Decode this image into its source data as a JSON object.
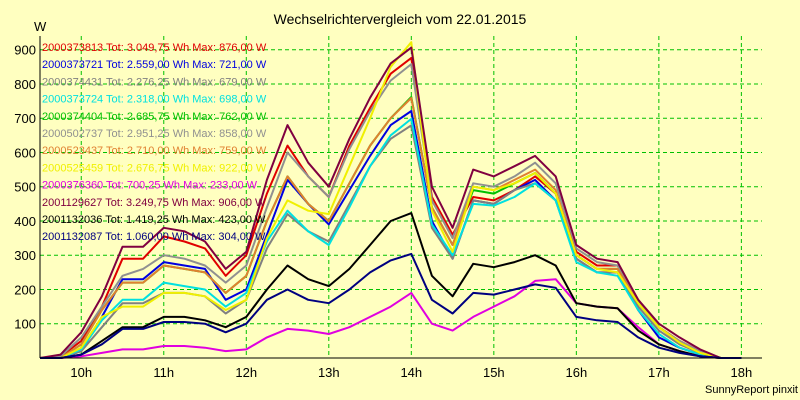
{
  "chart_data": {
    "type": "line",
    "title": "Wechselrichtervergleich vom 22.01.2015",
    "ylabel": "W",
    "footer": "SunnyReport pinxit",
    "ylim": [
      0,
      940
    ],
    "xlim": [
      9.5,
      18.25
    ],
    "y_ticks": [
      100,
      200,
      300,
      400,
      500,
      600,
      700,
      800,
      900
    ],
    "x_ticks": [
      10,
      11,
      12,
      13,
      14,
      15,
      16,
      17,
      18
    ],
    "x_tick_labels": [
      "10h",
      "11h",
      "12h",
      "13h",
      "14h",
      "15h",
      "16h",
      "17h",
      "18h"
    ],
    "grid": true,
    "x": [
      9.5,
      9.75,
      10,
      10.25,
      10.5,
      10.75,
      11,
      11.25,
      11.5,
      11.75,
      12,
      12.25,
      12.5,
      12.75,
      13,
      13.25,
      13.5,
      13.75,
      14,
      14.25,
      14.5,
      14.75,
      15,
      15.25,
      15.5,
      15.75,
      16,
      16.25,
      16.5,
      16.75,
      17,
      17.25,
      17.5,
      17.75,
      18
    ],
    "series": [
      {
        "name": "2000373813",
        "legend": "2000373813 Tot: 3.049,75 Wh Max: 876,00 W",
        "color": "#e00000",
        "values": [
          0,
          5,
          50,
          150,
          290,
          290,
          355,
          340,
          320,
          240,
          300,
          480,
          620,
          530,
          470,
          620,
          730,
          830,
          876,
          470,
          360,
          470,
          460,
          490,
          530,
          480,
          310,
          270,
          270,
          170,
          90,
          50,
          20,
          0,
          0
        ]
      },
      {
        "name": "2000373721",
        "legend": "2000373721 Tot: 2.559,00 Wh Max: 721,00 W",
        "color": "#0000e0",
        "values": [
          0,
          0,
          20,
          120,
          230,
          230,
          280,
          270,
          260,
          170,
          200,
          360,
          520,
          450,
          390,
          490,
          590,
          680,
          721,
          400,
          290,
          460,
          450,
          490,
          520,
          460,
          290,
          250,
          250,
          140,
          60,
          30,
          10,
          0,
          0
        ]
      },
      {
        "name": "2000374431",
        "legend": "2000374431 Tot: 2.276,25 Wh Max: 679,00 W",
        "color": "#808080",
        "values": [
          0,
          0,
          20,
          90,
          160,
          160,
          190,
          190,
          180,
          130,
          170,
          320,
          420,
          370,
          340,
          450,
          560,
          640,
          679,
          380,
          290,
          460,
          450,
          490,
          510,
          460,
          290,
          250,
          250,
          150,
          80,
          40,
          15,
          0,
          0
        ]
      },
      {
        "name": "2000373724",
        "legend": "2000373724 Tot: 2.318,00 Wh Max: 698,00 W",
        "color": "#00e0e0",
        "values": [
          0,
          0,
          25,
          110,
          170,
          170,
          220,
          210,
          200,
          150,
          190,
          340,
          430,
          370,
          330,
          440,
          560,
          650,
          698,
          390,
          300,
          450,
          445,
          470,
          510,
          460,
          280,
          250,
          240,
          140,
          70,
          30,
          10,
          0,
          0
        ]
      },
      {
        "name": "2000374404",
        "legend": "2000374404 Tot: 2.685,75 Wh Max: 762,00 W",
        "color": "#00c000",
        "values": [
          0,
          0,
          40,
          140,
          220,
          220,
          270,
          260,
          250,
          190,
          240,
          400,
          530,
          450,
          400,
          510,
          620,
          700,
          762,
          440,
          330,
          490,
          480,
          510,
          540,
          480,
          300,
          260,
          260,
          160,
          90,
          45,
          15,
          0,
          0
        ]
      },
      {
        "name": "2000502737",
        "legend": "2000502737 Tot: 2.951,25 Wh Max: 858,00 W",
        "color": "#909090",
        "values": [
          0,
          5,
          60,
          150,
          240,
          260,
          300,
          290,
          270,
          220,
          270,
          440,
          600,
          530,
          470,
          610,
          720,
          810,
          858,
          460,
          350,
          510,
          500,
          530,
          570,
          510,
          320,
          280,
          270,
          170,
          90,
          50,
          20,
          0,
          0
        ]
      },
      {
        "name": "2000523437",
        "legend": "2000523437 Tot: 2.710,00 Wh Max: 759,00 W",
        "color": "#e08030",
        "values": [
          0,
          0,
          40,
          140,
          220,
          220,
          270,
          260,
          250,
          190,
          240,
          400,
          530,
          450,
          400,
          510,
          620,
          700,
          759,
          440,
          330,
          500,
          490,
          520,
          550,
          490,
          300,
          260,
          260,
          160,
          90,
          45,
          15,
          0,
          0
        ]
      },
      {
        "name": "2000525459",
        "legend": "2000525459 Tot: 2.676,75 Wh Max: 922,00 W",
        "color": "#f0f000",
        "values": [
          0,
          0,
          30,
          120,
          150,
          150,
          190,
          190,
          180,
          140,
          170,
          350,
          460,
          430,
          420,
          560,
          700,
          850,
          922,
          430,
          310,
          500,
          490,
          510,
          540,
          480,
          300,
          260,
          250,
          160,
          90,
          45,
          15,
          0,
          0
        ]
      },
      {
        "name": "2000376360",
        "legend": "2000376360 Tot: 700,25 Wh Max: 233,00 W",
        "color": "#e000e0",
        "values": [
          0,
          0,
          5,
          15,
          25,
          25,
          35,
          35,
          30,
          20,
          25,
          60,
          85,
          80,
          70,
          90,
          120,
          150,
          190,
          100,
          80,
          120,
          150,
          180,
          225,
          230,
          160,
          150,
          145,
          90,
          40,
          20,
          5,
          0,
          0
        ]
      },
      {
        "name": "2001129627",
        "legend": "2001129627 Tot: 3.249,75 Wh Max: 906,00 W",
        "color": "#800040",
        "values": [
          0,
          10,
          75,
          180,
          325,
          325,
          380,
          370,
          340,
          260,
          310,
          520,
          680,
          570,
          500,
          640,
          760,
          860,
          906,
          500,
          380,
          550,
          530,
          560,
          590,
          530,
          330,
          290,
          280,
          170,
          100,
          60,
          25,
          0,
          0
        ]
      },
      {
        "name": "2001132036",
        "legend": "2001132036 Tot: 1.419,25 Wh Max: 423,00 W",
        "color": "#000000",
        "values": [
          0,
          0,
          10,
          50,
          90,
          90,
          120,
          120,
          110,
          90,
          120,
          200,
          270,
          230,
          210,
          260,
          330,
          400,
          423,
          240,
          180,
          275,
          265,
          280,
          300,
          270,
          160,
          150,
          145,
          80,
          40,
          20,
          5,
          0,
          0
        ]
      },
      {
        "name": "2001132087",
        "legend": "2001132087 Tot: 1.060,00 Wh Max: 304,00 W",
        "color": "#000080",
        "values": [
          0,
          0,
          10,
          40,
          85,
          85,
          105,
          105,
          100,
          75,
          100,
          170,
          200,
          170,
          160,
          200,
          250,
          285,
          304,
          170,
          130,
          190,
          185,
          200,
          215,
          205,
          120,
          110,
          105,
          60,
          30,
          15,
          5,
          0,
          0
        ]
      }
    ]
  }
}
